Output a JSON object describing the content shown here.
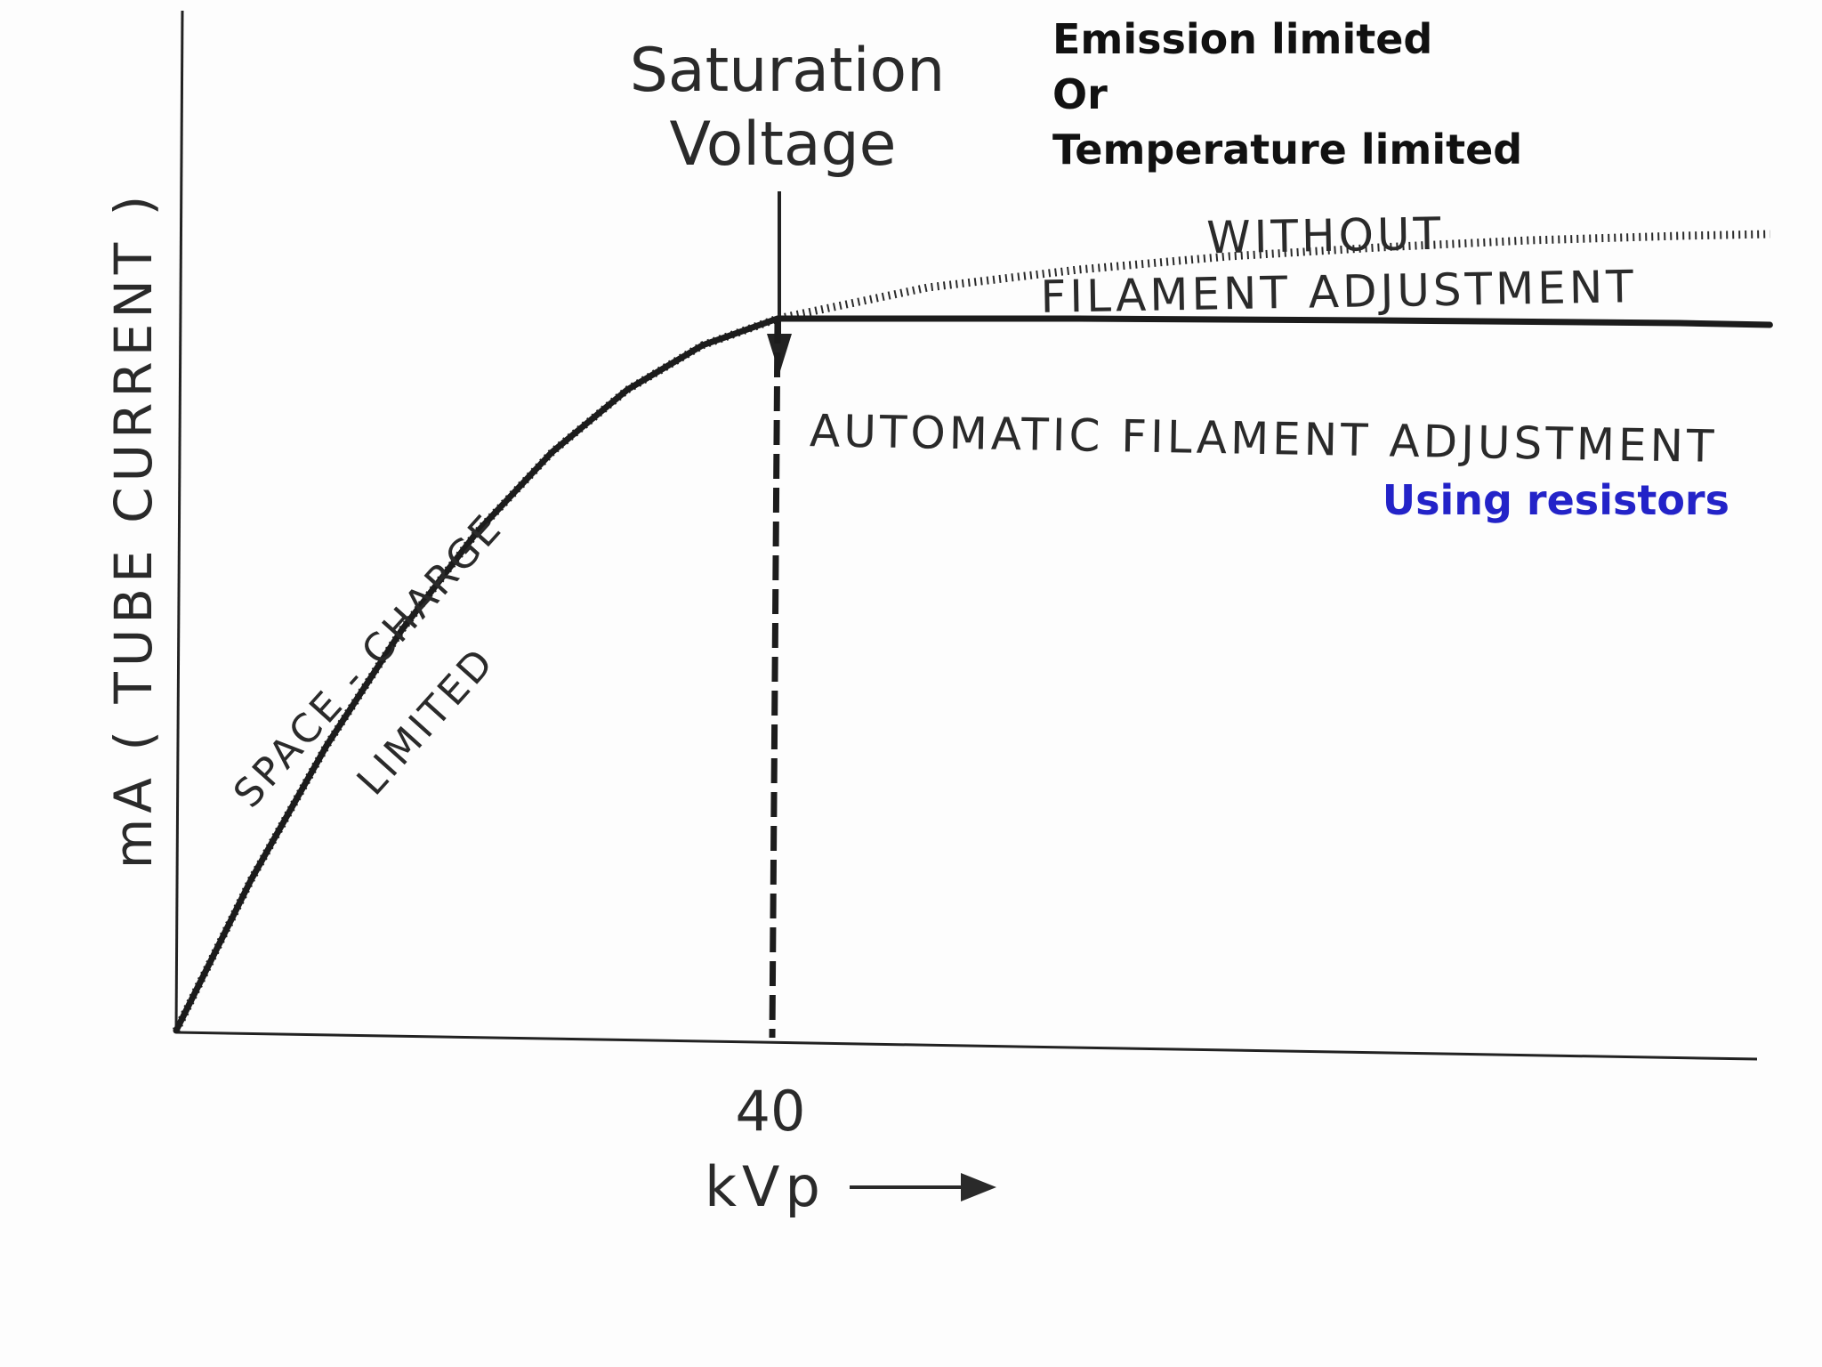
{
  "chart_data": {
    "type": "line",
    "ylabel": "mA ( TUBE  CURRENT )",
    "xlabel": "kVp",
    "x_tick_labels": [
      "40"
    ],
    "saturation_label": [
      "Saturation",
      "Voltage"
    ],
    "region_labels": {
      "space_charge": [
        "SPACE - CHARGE",
        "LIMITED"
      ]
    },
    "annotations": {
      "emission": [
        "Emission limited",
        "Or",
        "Temperature limited"
      ],
      "using_resistors": "Using resistors"
    },
    "series": [
      {
        "name": "WITHOUT FILAMENT ADJUSTMENT",
        "label_lines": [
          "WITHOUT",
          "FILAMENT  ADJUSTMENT"
        ],
        "style": "dotted",
        "x": [
          0,
          5,
          10,
          15,
          20,
          25,
          30,
          35,
          40,
          50,
          60,
          70,
          80,
          90,
          100,
          106
        ],
        "y": [
          0,
          17,
          32,
          45,
          56,
          65,
          72,
          77,
          80,
          83.5,
          85.5,
          87,
          88,
          88.8,
          89.3,
          89.5
        ]
      },
      {
        "name": "AUTOMATIC FILAMENT ADJUSTMENT",
        "label_lines": [
          "AUTOMATIC  FILAMENT  ADJUSTMENT"
        ],
        "style": "solid",
        "x": [
          0,
          5,
          10,
          15,
          20,
          25,
          30,
          35,
          40,
          60,
          80,
          100,
          106
        ],
        "y": [
          0,
          17,
          32,
          45,
          56,
          65,
          72,
          77,
          80,
          80,
          79.8,
          79.5,
          79.3
        ]
      }
    ],
    "vertical_marker": {
      "x": 40,
      "style": "dashed"
    },
    "xlim": [
      0,
      108
    ],
    "ylim": [
      0,
      120
    ],
    "grid": false,
    "colors": {
      "line": "#1c1c1c",
      "annotation": "#111111",
      "accent": "#2323c8"
    }
  }
}
